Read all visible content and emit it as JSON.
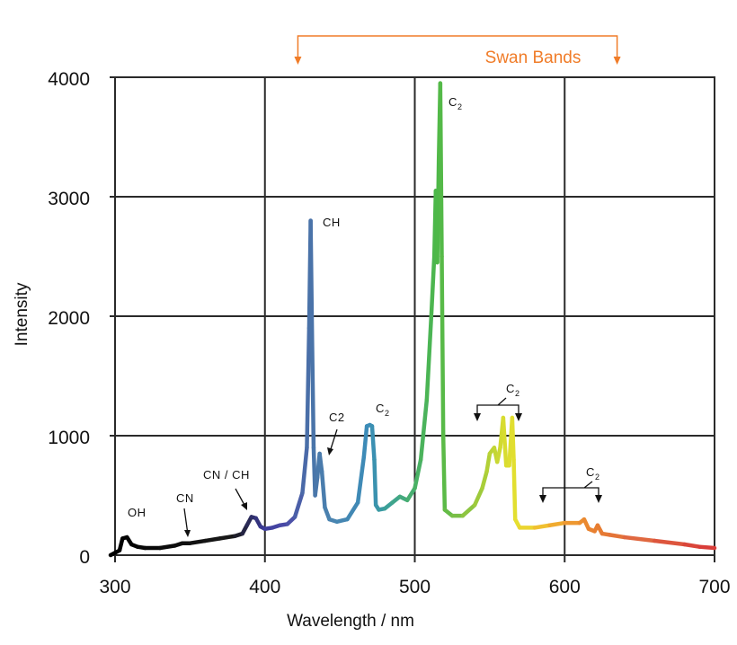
{
  "chart_data": {
    "type": "line",
    "title": "",
    "xlabel": "Wavelength / nm",
    "ylabel": "Intensity",
    "xlim": [
      300,
      700
    ],
    "ylim": [
      0,
      4000
    ],
    "x_ticks": [
      300,
      400,
      500,
      600,
      700
    ],
    "y_ticks": [
      0,
      1000,
      2000,
      3000,
      4000
    ],
    "x_tick_labels": [
      "300",
      "400",
      "500",
      "600",
      "700"
    ],
    "y_tick_labels": [
      "0",
      "1000",
      "2000",
      "3000",
      "4000"
    ],
    "grid": true,
    "series": [
      {
        "name": "spectrum",
        "points": [
          [
            297,
            0
          ],
          [
            300,
            20
          ],
          [
            303,
            40
          ],
          [
            305,
            140
          ],
          [
            308,
            150
          ],
          [
            311,
            90
          ],
          [
            315,
            70
          ],
          [
            320,
            60
          ],
          [
            330,
            60
          ],
          [
            340,
            80
          ],
          [
            345,
            100
          ],
          [
            350,
            100
          ],
          [
            360,
            120
          ],
          [
            370,
            140
          ],
          [
            380,
            160
          ],
          [
            385,
            180
          ],
          [
            388,
            250
          ],
          [
            391,
            320
          ],
          [
            394,
            310
          ],
          [
            397,
            240
          ],
          [
            400,
            220
          ],
          [
            405,
            230
          ],
          [
            410,
            250
          ],
          [
            415,
            260
          ],
          [
            420,
            320
          ],
          [
            425,
            520
          ],
          [
            428,
            900
          ],
          [
            429.5,
            1900
          ],
          [
            430.5,
            2800
          ],
          [
            431.5,
            1800
          ],
          [
            432.5,
            900
          ],
          [
            433.5,
            500
          ],
          [
            435,
            650
          ],
          [
            436.5,
            850
          ],
          [
            438,
            700
          ],
          [
            440,
            400
          ],
          [
            443,
            300
          ],
          [
            448,
            280
          ],
          [
            455,
            300
          ],
          [
            462,
            440
          ],
          [
            466,
            820
          ],
          [
            468,
            1080
          ],
          [
            470,
            1090
          ],
          [
            471.5,
            1080
          ],
          [
            473,
            800
          ],
          [
            474,
            420
          ],
          [
            476,
            380
          ],
          [
            480,
            390
          ],
          [
            485,
            440
          ],
          [
            490,
            490
          ],
          [
            495,
            460
          ],
          [
            500,
            560
          ],
          [
            504,
            800
          ],
          [
            508,
            1300
          ],
          [
            511,
            2000
          ],
          [
            513,
            2500
          ],
          [
            514,
            3050
          ],
          [
            515,
            2450
          ],
          [
            516,
            3300
          ],
          [
            517,
            3950
          ],
          [
            518,
            2500
          ],
          [
            519,
            1000
          ],
          [
            520,
            380
          ],
          [
            525,
            330
          ],
          [
            532,
            330
          ],
          [
            540,
            420
          ],
          [
            545,
            560
          ],
          [
            548,
            700
          ],
          [
            550,
            850
          ],
          [
            553,
            900
          ],
          [
            555,
            780
          ],
          [
            557,
            900
          ],
          [
            559,
            1150
          ],
          [
            561,
            750
          ],
          [
            563,
            750
          ],
          [
            565,
            1150
          ],
          [
            566,
            800
          ],
          [
            567,
            300
          ],
          [
            570,
            230
          ],
          [
            580,
            230
          ],
          [
            590,
            250
          ],
          [
            600,
            270
          ],
          [
            610,
            270
          ],
          [
            613,
            300
          ],
          [
            616,
            220
          ],
          [
            620,
            200
          ],
          [
            622,
            250
          ],
          [
            625,
            180
          ],
          [
            630,
            170
          ],
          [
            640,
            150
          ],
          [
            660,
            120
          ],
          [
            680,
            90
          ],
          [
            690,
            70
          ],
          [
            700,
            60
          ]
        ],
        "colors": [
          [
            300,
            "#000000"
          ],
          [
            380,
            "#1a1a1a"
          ],
          [
            400,
            "#3b3b9a"
          ],
          [
            415,
            "#4c4ca8"
          ],
          [
            430,
            "#4a72a8"
          ],
          [
            445,
            "#4a84b0"
          ],
          [
            470,
            "#3b8cb8"
          ],
          [
            480,
            "#3a9e9e"
          ],
          [
            500,
            "#4ab06a"
          ],
          [
            515,
            "#4cb848"
          ],
          [
            530,
            "#7ec046"
          ],
          [
            545,
            "#a4cc3a"
          ],
          [
            560,
            "#d8dc30"
          ],
          [
            570,
            "#e8e030"
          ],
          [
            585,
            "#f0c030"
          ],
          [
            600,
            "#f0a030"
          ],
          [
            620,
            "#e88030"
          ],
          [
            650,
            "#e06840"
          ],
          [
            700,
            "#d83838"
          ]
        ]
      }
    ],
    "annotations": [
      {
        "id": "oh",
        "text": "OH",
        "x": 305
      },
      {
        "id": "cn",
        "text": "CN",
        "x": 347
      },
      {
        "id": "cn_ch",
        "text": "CN / CH",
        "x": 390
      },
      {
        "id": "ch",
        "text": "CH",
        "x": 431
      },
      {
        "id": "c2_plain",
        "text": "C2",
        "x": 437
      },
      {
        "id": "c2_471",
        "text": "C",
        "sub": "2",
        "x": 471
      },
      {
        "id": "c2_517",
        "text": "C",
        "sub": "2",
        "x": 517
      },
      {
        "id": "c2_bracket1",
        "text": "C",
        "sub": "2",
        "x_range": [
          541,
          569
        ]
      },
      {
        "id": "c2_bracket2",
        "text": "C",
        "sub": "2",
        "x_range": [
          585,
          623
        ]
      }
    ],
    "swan_bands": {
      "label": "Swan Bands",
      "x_range": [
        422,
        635
      ],
      "color": "#f07c28"
    }
  }
}
